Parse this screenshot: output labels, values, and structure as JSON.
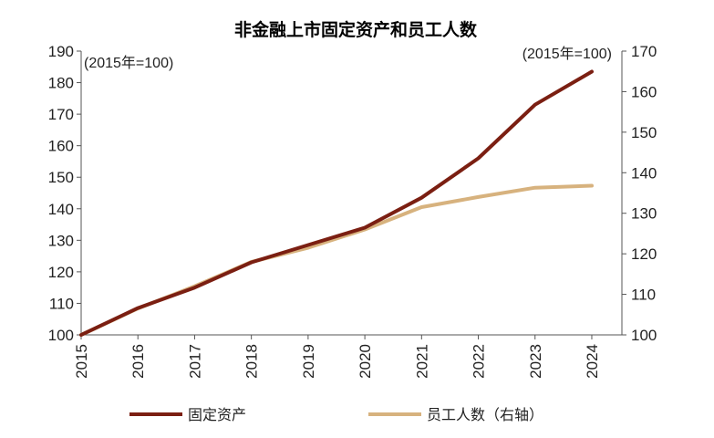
{
  "chart_data": {
    "type": "line",
    "title": "非金融上市固定资产和员工人数",
    "left_note": "(2015年=100)",
    "right_note": "(2015年=100)",
    "x": [
      "2015",
      "2016",
      "2017",
      "2018",
      "2019",
      "2020",
      "2021",
      "2022",
      "2023",
      "2024"
    ],
    "y_left": {
      "ylim": [
        100,
        190
      ],
      "ticks": [
        "100",
        "110",
        "120",
        "130",
        "140",
        "150",
        "160",
        "170",
        "180",
        "190"
      ]
    },
    "y_right": {
      "ylim": [
        100,
        170
      ],
      "ticks": [
        "100",
        "110",
        "120",
        "130",
        "140",
        "150",
        "160",
        "170"
      ]
    },
    "series": [
      {
        "name": "固定资产",
        "axis": "left",
        "color": "#7B1F12",
        "values": [
          100,
          108.5,
          115,
          123,
          128.5,
          134,
          143.5,
          156,
          173,
          183.5
        ]
      },
      {
        "name": "员工人数（右轴）",
        "axis": "right",
        "color": "#D7B27E",
        "values": [
          100,
          106.5,
          112,
          118,
          121.5,
          126,
          131.5,
          134,
          136.3,
          136.8
        ]
      }
    ],
    "grid": false,
    "legend": "bottom"
  }
}
